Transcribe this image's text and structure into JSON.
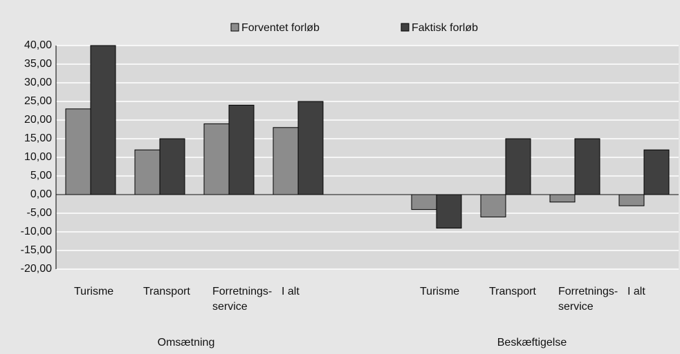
{
  "chart_data": {
    "type": "bar",
    "categories": [
      "Turisme",
      "Transport",
      "Forretnings-service",
      "I alt",
      null,
      "Turisme",
      "Transport",
      "Forretnings-service",
      "I alt"
    ],
    "group_labels": [
      "Omsætning",
      "Beskæftigelse"
    ],
    "series": [
      {
        "name": "Forventet forløb",
        "color": "#8c8c8c",
        "values": [
          23,
          12,
          19,
          18,
          null,
          -4,
          -6,
          -2,
          -3
        ]
      },
      {
        "name": "Faktisk forløb",
        "color": "#404040",
        "values": [
          40,
          15,
          24,
          25,
          null,
          -9,
          15,
          15,
          12
        ]
      }
    ],
    "ylim": [
      -20,
      40
    ],
    "yticks": [
      {
        "value": -20,
        "label": "-20,00"
      },
      {
        "value": -15,
        "label": "-15,00"
      },
      {
        "value": -10,
        "label": "-10,00"
      },
      {
        "value": -5,
        "label": "-5,00"
      },
      {
        "value": 0,
        "label": "0,00"
      },
      {
        "value": 5,
        "label": "5,00"
      },
      {
        "value": 10,
        "label": "10,00"
      },
      {
        "value": 15,
        "label": "15,00"
      },
      {
        "value": 20,
        "label": "20,00"
      },
      {
        "value": 25,
        "label": "25,00"
      },
      {
        "value": 30,
        "label": "30,00"
      },
      {
        "value": 35,
        "label": "35,00"
      },
      {
        "value": 40,
        "label": "40,00"
      }
    ],
    "grid": true
  }
}
